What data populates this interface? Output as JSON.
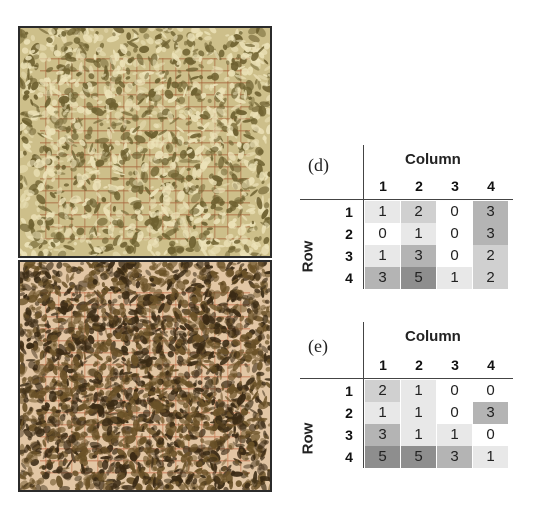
{
  "panels": [
    {
      "label": "(d)",
      "column_title": "Column",
      "row_title": "Row",
      "col_headers": [
        "1",
        "2",
        "3",
        "4"
      ],
      "row_headers": [
        "1",
        "2",
        "3",
        "4"
      ],
      "cells": [
        [
          "1",
          "2",
          "0",
          "3"
        ],
        [
          "0",
          "1",
          "0",
          "3"
        ],
        [
          "1",
          "3",
          "0",
          "2"
        ],
        [
          "3",
          "5",
          "1",
          "2"
        ]
      ]
    },
    {
      "label": "(e)",
      "column_title": "Column",
      "row_title": "Row",
      "col_headers": [
        "1",
        "2",
        "3",
        "4"
      ],
      "row_headers": [
        "1",
        "2",
        "3",
        "4"
      ],
      "cells": [
        [
          "2",
          "1",
          "0",
          "0"
        ],
        [
          "1",
          "1",
          "0",
          "3"
        ],
        [
          "3",
          "1",
          "1",
          "0"
        ],
        [
          "5",
          "5",
          "3",
          "1"
        ]
      ]
    }
  ],
  "shading_scale": {
    "0": "#ffffff",
    "1": "#e8e8e8",
    "2": "#d0d0d0",
    "3": "#b4b4b4",
    "5": "#8e8e8e"
  }
}
